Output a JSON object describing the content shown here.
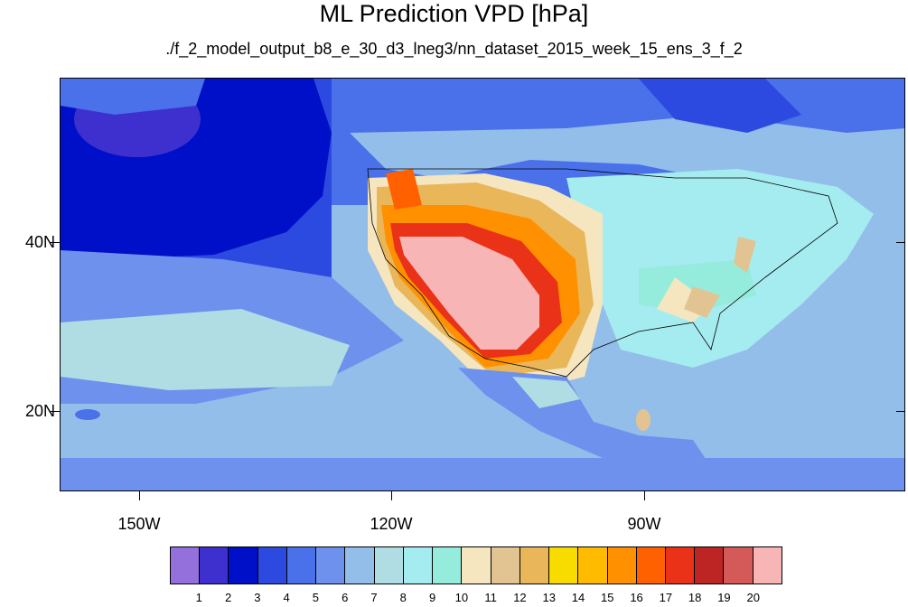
{
  "title": "ML Prediction VPD [hPa]",
  "subtitle": "./f_2_model_output_b8_e_30_d3_lneg3/nn_dataset_2015_week_15_ens_3_f_2",
  "latitude_labels": [
    "40N",
    "20N"
  ],
  "longitude_labels": [
    "150W",
    "120W",
    "90W"
  ],
  "colorbar": {
    "labels": [
      "1",
      "2",
      "3",
      "4",
      "5",
      "6",
      "7",
      "8",
      "9",
      "10",
      "11",
      "12",
      "13",
      "14",
      "15",
      "16",
      "17",
      "18",
      "19",
      "20"
    ],
    "colors": [
      "#9370db",
      "#3e2fcf",
      "#0010c8",
      "#2d4ae0",
      "#4a70ea",
      "#6e91ed",
      "#93bee9",
      "#b0dde4",
      "#a5ecf0",
      "#96ecdc",
      "#f5e6c0",
      "#e2c493",
      "#eab65a",
      "#f8dc00",
      "#ffbb00",
      "#ff9100",
      "#ff6000",
      "#ea3218",
      "#bd2424",
      "#d45a5a",
      "#f8b5b5"
    ]
  }
}
